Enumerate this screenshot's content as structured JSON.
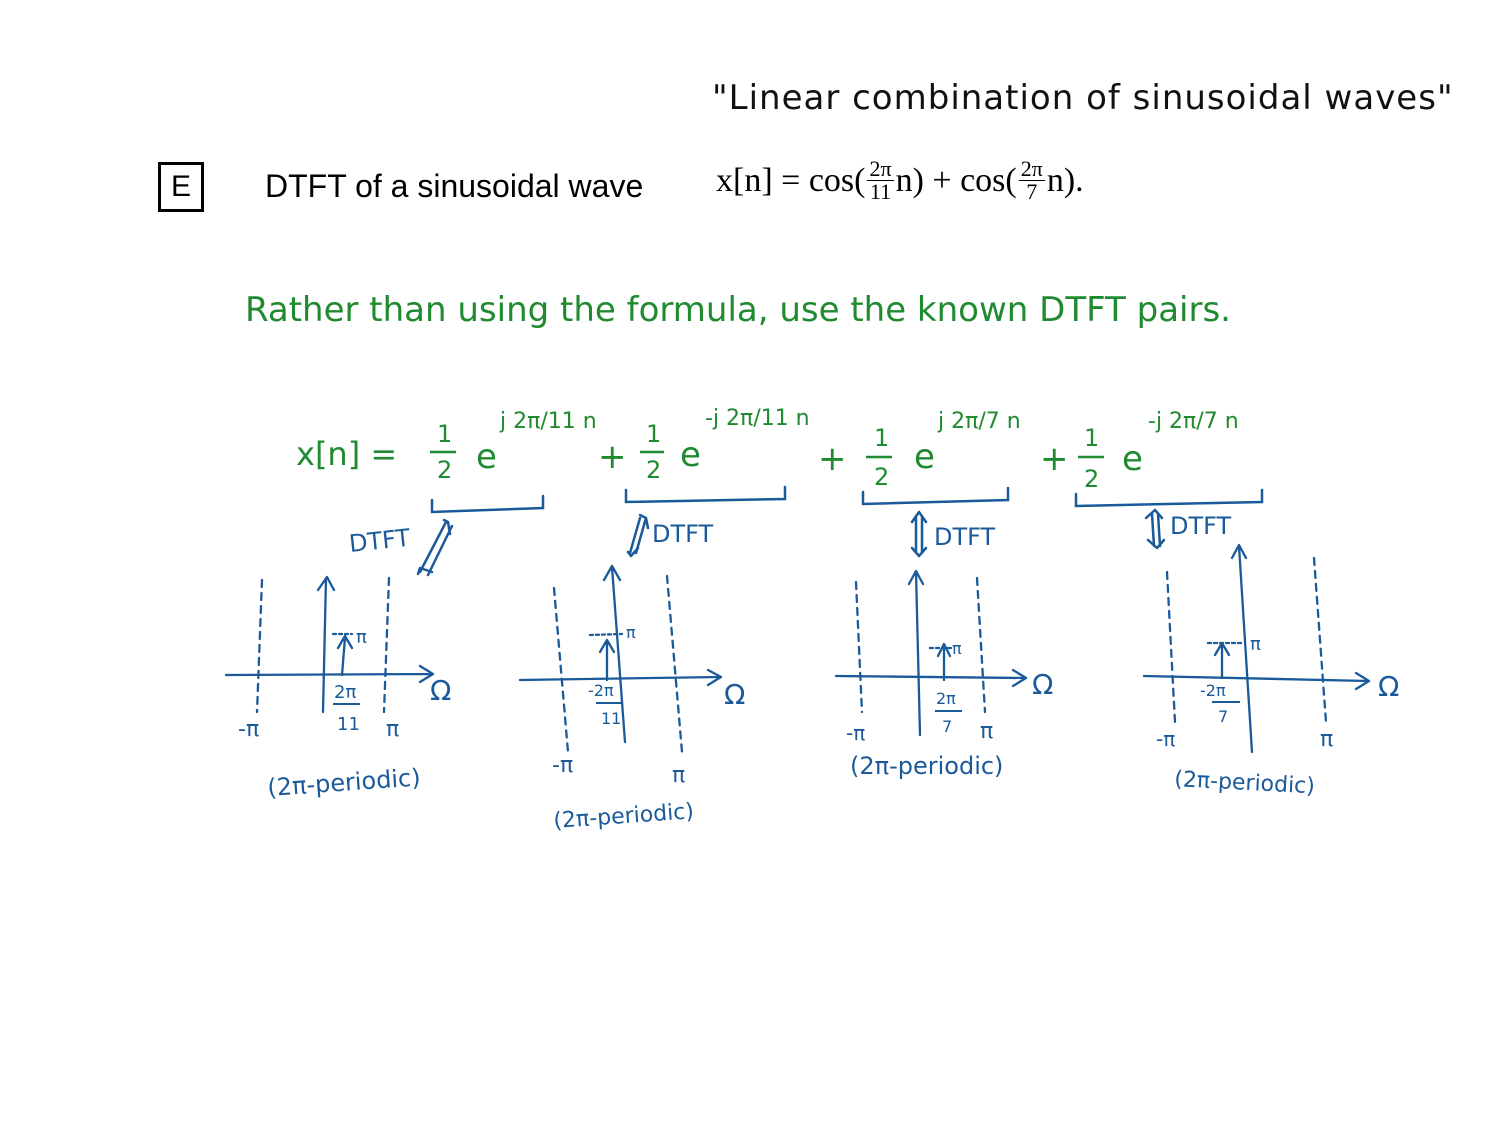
{
  "header": {
    "top_note": "\"Linear combination of sinusoidal waves\"",
    "section_letter": "E",
    "section_title": "DTFT of a sinusoidal wave",
    "formula": {
      "lhs": "x[n] = cos(",
      "frac1_num": "2π",
      "frac1_den": "11",
      "mid": "n) + cos(",
      "frac2_num": "2π",
      "frac2_den": "7",
      "end": "n)."
    }
  },
  "note": "Rather than using the formula, use the known DTFT pairs.",
  "expansion": {
    "lhs": "x[n] =",
    "half_num": "1",
    "half_den": "2",
    "terms": [
      {
        "exp": "j 2π/11 n",
        "sign": ""
      },
      {
        "exp": "-j 2π/11 n",
        "sign": "+"
      },
      {
        "exp": "j 2π/7 n",
        "sign": "+"
      },
      {
        "exp": "-j 2π/7 n",
        "sign": "+"
      }
    ]
  },
  "plots": [
    {
      "arrow_label": "DTFT",
      "impulse_label": "π",
      "freq_num": "2π",
      "freq_den": "11",
      "neg_pi": "-π",
      "pos_pi": "π",
      "axis": "Ω",
      "caption": "(2π-periodic)"
    },
    {
      "arrow_label": "DTFT",
      "impulse_label": "π",
      "freq_num": "-2π",
      "freq_den": "11",
      "neg_pi": "-π",
      "pos_pi": "π",
      "axis": "Ω",
      "caption": "(2π-periodic)"
    },
    {
      "arrow_label": "DTFT",
      "impulse_label": "π",
      "freq_num": "2π",
      "freq_den": "7",
      "neg_pi": "-π",
      "pos_pi": "π",
      "axis": "Ω",
      "caption": "(2π-periodic)"
    },
    {
      "arrow_label": "DTFT",
      "impulse_label": "π",
      "freq_num": "-2π",
      "freq_den": "7",
      "neg_pi": "-π",
      "pos_pi": "π",
      "axis": "Ω",
      "caption": "(2π-periodic)"
    }
  ],
  "colors": {
    "green": "#1f8a2f",
    "blue": "#1a5a9a",
    "black": "#111111"
  }
}
